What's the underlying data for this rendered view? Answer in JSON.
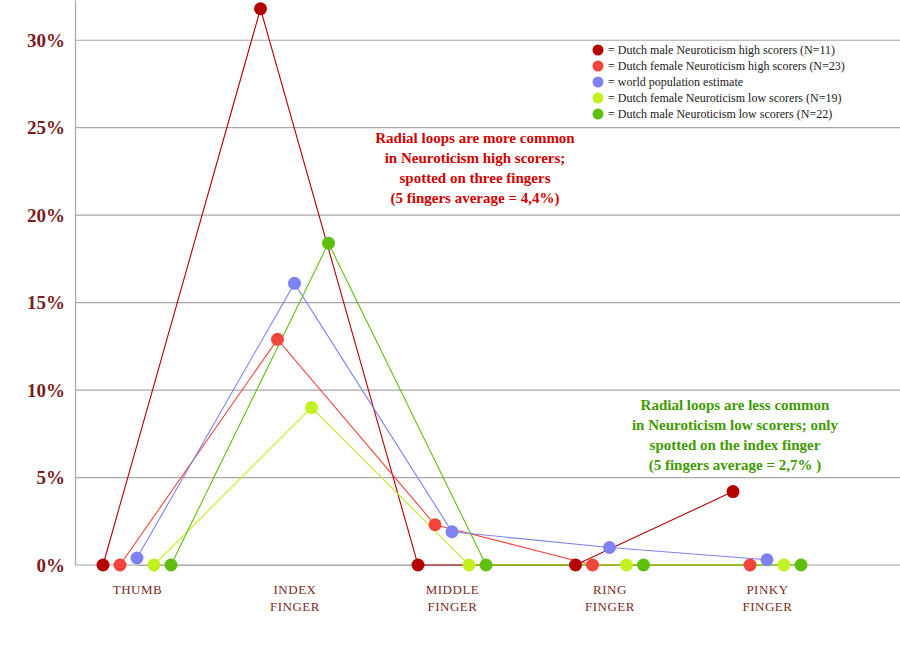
{
  "chart_data": {
    "type": "line",
    "categories": [
      "THUMB",
      "INDEX FINGER",
      "MIDDLE FINGER",
      "RING FINGER",
      "PINKY FINGER"
    ],
    "series": [
      {
        "name": "= Dutch male Neuroticism high scorers (N=11)",
        "color": "#b30000",
        "values": [
          0,
          31.8,
          0,
          0,
          4.2
        ]
      },
      {
        "name": "= Dutch female Neuroticism high scorers (N=23)",
        "color": "#f0463c",
        "values": [
          0,
          12.9,
          2.3,
          0,
          0
        ]
      },
      {
        "name": "= world population estimate",
        "color": "#7f82f2",
        "values": [
          0.4,
          16.1,
          1.9,
          1.0,
          0.3
        ]
      },
      {
        "name": "= Dutch female Neuroticism low scorers (N=19)",
        "color": "#c2f020",
        "values": [
          0,
          9.0,
          0,
          0,
          0
        ]
      },
      {
        "name": "= Dutch male Neuroticism low scorers (N=22)",
        "color": "#5fbf10",
        "values": [
          0,
          18.4,
          0,
          0,
          0
        ]
      }
    ],
    "ylim": [
      0,
      32.3
    ],
    "yticks": [
      {
        "value": 0,
        "label": "0%"
      },
      {
        "value": 5,
        "label": "5%"
      },
      {
        "value": 10,
        "label": "10%"
      },
      {
        "value": 15,
        "label": "15%"
      },
      {
        "value": 20,
        "label": "20%"
      },
      {
        "value": 25,
        "label": "25%"
      },
      {
        "value": 30,
        "label": "30%"
      }
    ],
    "grid": true,
    "legend": "top-right",
    "marker": "circle",
    "line_style": "solid",
    "annotations": [
      {
        "text": [
          "Radial loops are more common",
          "in Neuroticism high scorers;",
          "spotted on three fingers",
          "(5 fingers average = 4,4%)"
        ]
      },
      {
        "text": [
          "Radial loops are less common",
          "in Neuroticism low scorers; only",
          "spotted on the index finger",
          "(5 fingers average = 2,7% )"
        ]
      }
    ]
  }
}
